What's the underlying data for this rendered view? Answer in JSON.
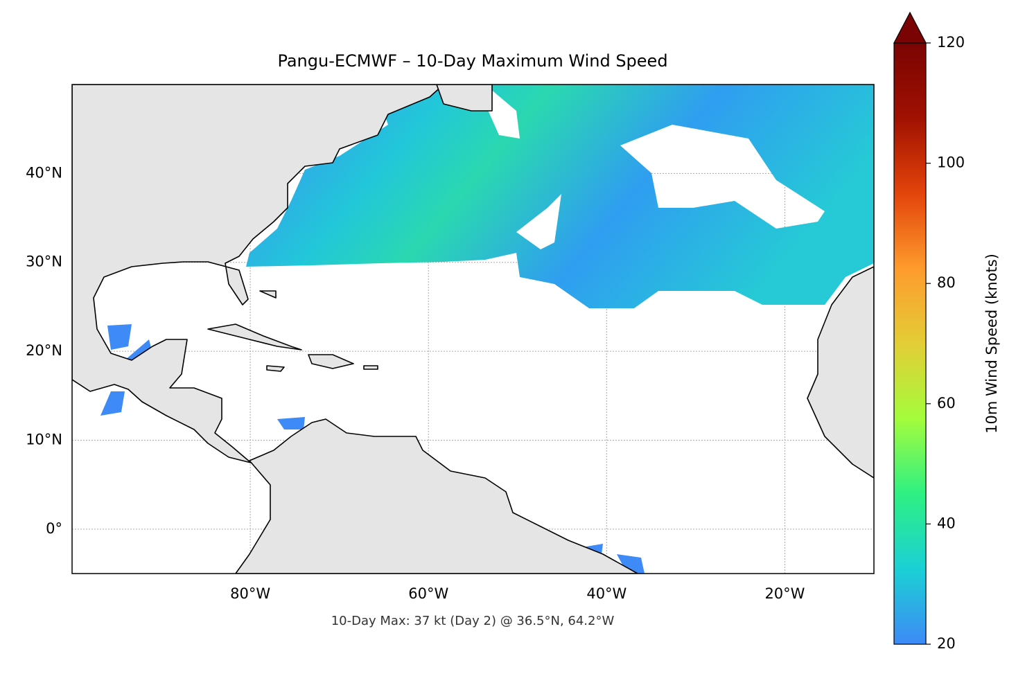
{
  "title": "Pangu-ECMWF – 10-Day Maximum Wind Speed",
  "footnote": "10-Day Max: 37 kt (Day 2) @ 36.5°N, 64.2°W",
  "map": {
    "xlim": [
      -100,
      -10
    ],
    "ylim": [
      -5,
      50
    ],
    "xticks": [
      {
        "value": -80,
        "label": "80°W"
      },
      {
        "value": -60,
        "label": "60°W"
      },
      {
        "value": -40,
        "label": "40°W"
      },
      {
        "value": -20,
        "label": "20°W"
      }
    ],
    "yticks": [
      {
        "value": 0,
        "label": "0°"
      },
      {
        "value": 10,
        "label": "10°N"
      },
      {
        "value": 20,
        "label": "20°N"
      },
      {
        "value": 30,
        "label": "30°N"
      },
      {
        "value": 40,
        "label": "40°N"
      }
    ],
    "grid": true
  },
  "colorbar": {
    "label": "10m Wind Speed (knots)",
    "lim": [
      20,
      120
    ],
    "ticks": [
      20,
      40,
      60,
      80,
      100,
      120
    ],
    "colors": [
      "#3e8af6",
      "#1bd0d5",
      "#2ef083",
      "#a4fc3c",
      "#e3cd36",
      "#fe9b2d",
      "#e3440a",
      "#a01101",
      "#7a0403"
    ]
  }
}
